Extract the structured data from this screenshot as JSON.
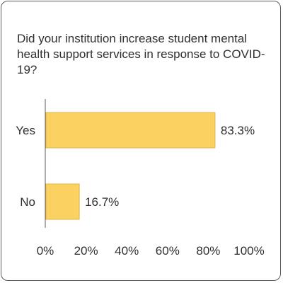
{
  "chart_data": {
    "type": "bar",
    "orientation": "horizontal",
    "title": "Did your institution increase student mental health support services in response to COVID-19?",
    "categories": [
      "Yes",
      "No"
    ],
    "values": [
      83.3,
      16.7
    ],
    "value_labels": [
      "83.3%",
      "16.7%"
    ],
    "xlim": [
      0,
      100
    ],
    "x_ticks": [
      0,
      20,
      40,
      60,
      80,
      100
    ],
    "x_tick_labels": [
      "0%",
      "20%",
      "40%",
      "60%",
      "80%",
      "100%"
    ],
    "grid": false,
    "legend": "none",
    "colors": {
      "bar_fill": "#fbd261",
      "bar_stroke": "#e0b545",
      "axis": "#5a5a5a",
      "text": "#2f2f2f"
    }
  }
}
